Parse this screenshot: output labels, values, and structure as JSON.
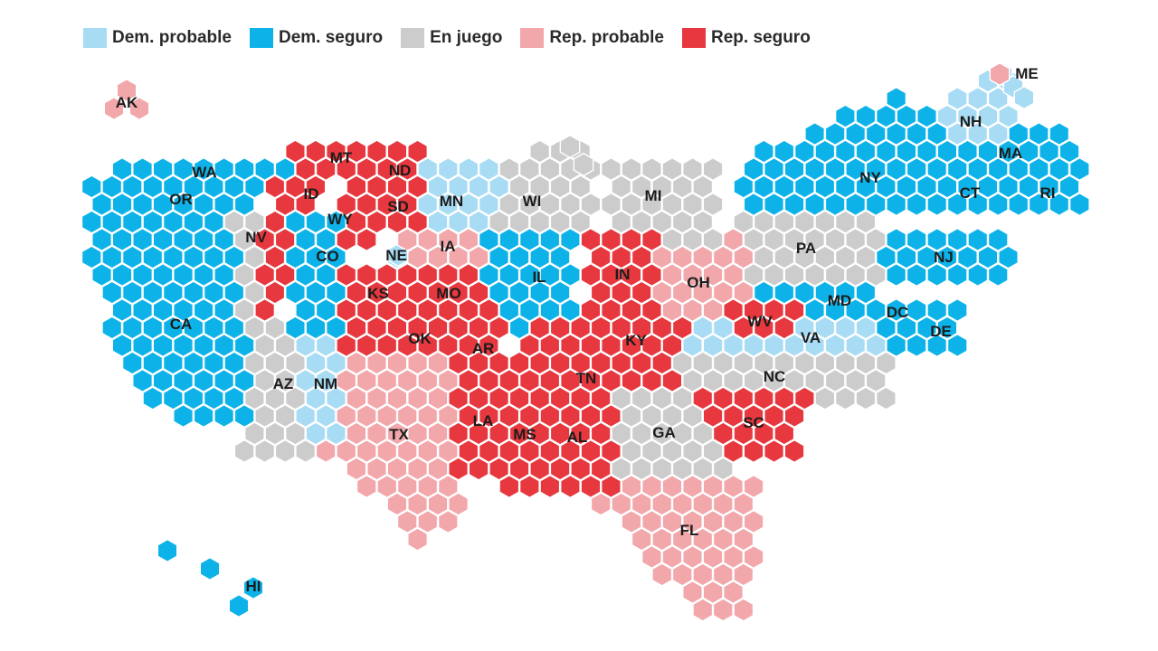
{
  "colors": {
    "dem_probable": "#a8dcf4",
    "dem_seguro": "#0db3e8",
    "en_juego": "#cccccc",
    "rep_probable": "#f2a7ab",
    "rep_seguro": "#e6383e"
  },
  "legend": {
    "dem_probable": "Dem. probable",
    "dem_seguro": "Dem. seguro",
    "en_juego": "En juego",
    "rep_probable": "Rep. probable",
    "rep_seguro": "Rep. seguro"
  },
  "states": [
    {
      "code": "AK",
      "rating": "rep_probable"
    },
    {
      "code": "ME",
      "rating": "dem_probable"
    },
    {
      "code": "WA",
      "rating": "dem_seguro"
    },
    {
      "code": "OR",
      "rating": "dem_seguro"
    },
    {
      "code": "CA",
      "rating": "dem_seguro"
    },
    {
      "code": "NV",
      "rating": "en_juego"
    },
    {
      "code": "AZ",
      "rating": "en_juego"
    },
    {
      "code": "NM",
      "rating": "dem_probable"
    },
    {
      "code": "CO",
      "rating": "dem_seguro"
    },
    {
      "code": "MT",
      "rating": "rep_seguro"
    },
    {
      "code": "ID",
      "rating": "rep_seguro"
    },
    {
      "code": "WY",
      "rating": "rep_seguro"
    },
    {
      "code": "ND",
      "rating": "rep_seguro"
    },
    {
      "code": "SD",
      "rating": "rep_seguro"
    },
    {
      "code": "NE",
      "rating": "dem_probable"
    },
    {
      "code": "KS",
      "rating": "rep_seguro"
    },
    {
      "code": "OK",
      "rating": "rep_seguro"
    },
    {
      "code": "TX",
      "rating": "rep_probable"
    },
    {
      "code": "MN",
      "rating": "dem_probable"
    },
    {
      "code": "IA",
      "rating": "rep_probable"
    },
    {
      "code": "MO",
      "rating": "rep_seguro"
    },
    {
      "code": "AR",
      "rating": "rep_seguro"
    },
    {
      "code": "LA",
      "rating": "rep_seguro"
    },
    {
      "code": "WI",
      "rating": "en_juego"
    },
    {
      "code": "IL",
      "rating": "dem_seguro"
    },
    {
      "code": "MI",
      "rating": "en_juego"
    },
    {
      "code": "IN",
      "rating": "rep_seguro"
    },
    {
      "code": "OH",
      "rating": "rep_probable"
    },
    {
      "code": "KY",
      "rating": "rep_seguro"
    },
    {
      "code": "TN",
      "rating": "rep_seguro"
    },
    {
      "code": "MS",
      "rating": "rep_seguro"
    },
    {
      "code": "AL",
      "rating": "rep_seguro"
    },
    {
      "code": "GA",
      "rating": "en_juego"
    },
    {
      "code": "FL",
      "rating": "rep_probable"
    },
    {
      "code": "SC",
      "rating": "rep_seguro"
    },
    {
      "code": "NC",
      "rating": "en_juego"
    },
    {
      "code": "VA",
      "rating": "dem_probable"
    },
    {
      "code": "WV",
      "rating": "rep_seguro"
    },
    {
      "code": "PA",
      "rating": "en_juego"
    },
    {
      "code": "NY",
      "rating": "dem_seguro"
    },
    {
      "code": "NJ",
      "rating": "dem_seguro"
    },
    {
      "code": "MD",
      "rating": "dem_seguro"
    },
    {
      "code": "DC",
      "rating": "dem_seguro"
    },
    {
      "code": "DE",
      "rating": "dem_seguro"
    },
    {
      "code": "CT",
      "rating": "dem_seguro"
    },
    {
      "code": "RI",
      "rating": "dem_seguro"
    },
    {
      "code": "MA",
      "rating": "dem_seguro"
    },
    {
      "code": "NH",
      "rating": "dem_probable"
    },
    {
      "code": "HI",
      "rating": "dem_seguro"
    }
  ]
}
